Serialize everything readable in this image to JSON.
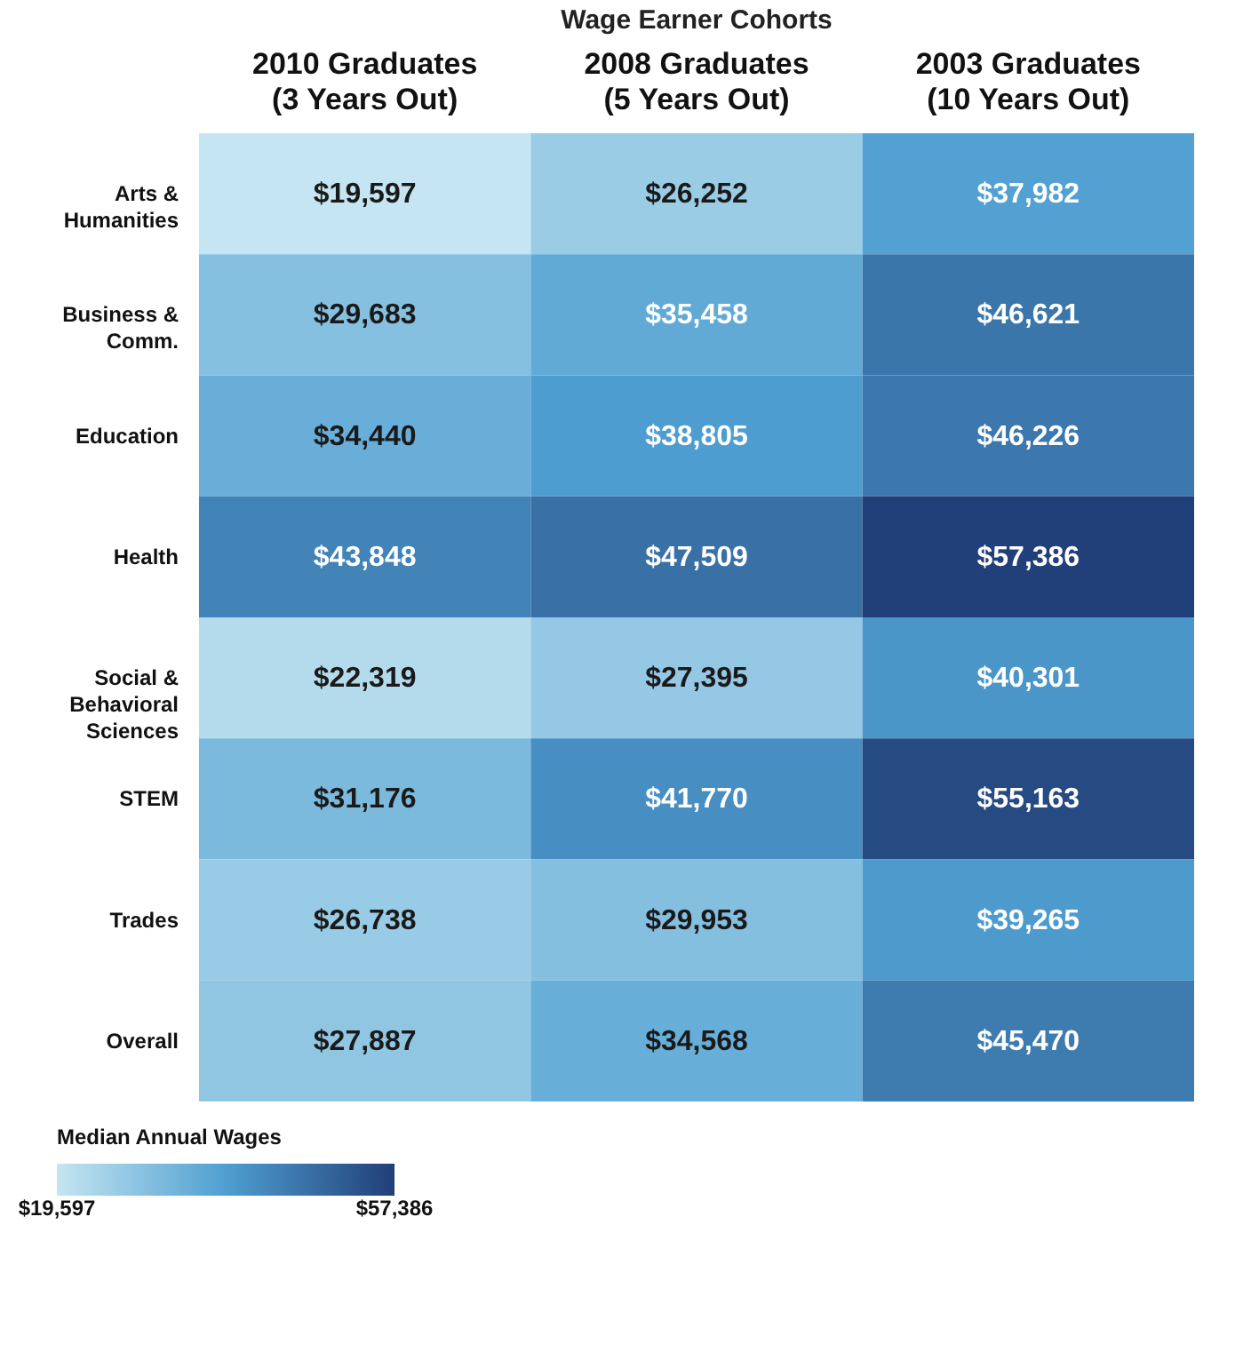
{
  "chart_data": {
    "type": "heatmap",
    "title": "Wage Earner Cohorts",
    "categories": [
      "2010 Graduates\n(3 Years Out)",
      "2008 Graduates\n(5 Years Out)",
      "2003 Graduates\n(10 Years Out)"
    ],
    "y_categories": [
      "Arts &\nHumanities",
      "Business &\nComm.",
      "Education",
      "Health",
      "Social &\nBehavioral\nSciences",
      "STEM",
      "Trades",
      "Overall"
    ],
    "cells": [
      [
        19597,
        26252,
        37982
      ],
      [
        29683,
        35458,
        46621
      ],
      [
        34440,
        38805,
        46226
      ],
      [
        43848,
        47509,
        57386
      ],
      [
        22319,
        27395,
        40301
      ],
      [
        31176,
        41770,
        55163
      ],
      [
        26738,
        29953,
        39265
      ],
      [
        27887,
        34568,
        45470
      ]
    ],
    "cell_labels": [
      [
        "$19,597",
        "$26,252",
        "$37,982"
      ],
      [
        "$29,683",
        "$35,458",
        "$46,621"
      ],
      [
        "$34,440",
        "$38,805",
        "$46,226"
      ],
      [
        "$43,848",
        "$47,509",
        "$57,386"
      ],
      [
        "$22,319",
        "$27,395",
        "$40,301"
      ],
      [
        "$31,176",
        "$41,770",
        "$55,163"
      ],
      [
        "$26,738",
        "$29,953",
        "$39,265"
      ],
      [
        "$27,887",
        "$34,568",
        "$45,470"
      ]
    ],
    "clabel": "Median Annual Wages",
    "clim": [
      19597,
      57386
    ],
    "cticks": [
      {
        "value": 19597,
        "label": "$19,597"
      },
      {
        "value": 57386,
        "label": "$57,386"
      }
    ]
  }
}
